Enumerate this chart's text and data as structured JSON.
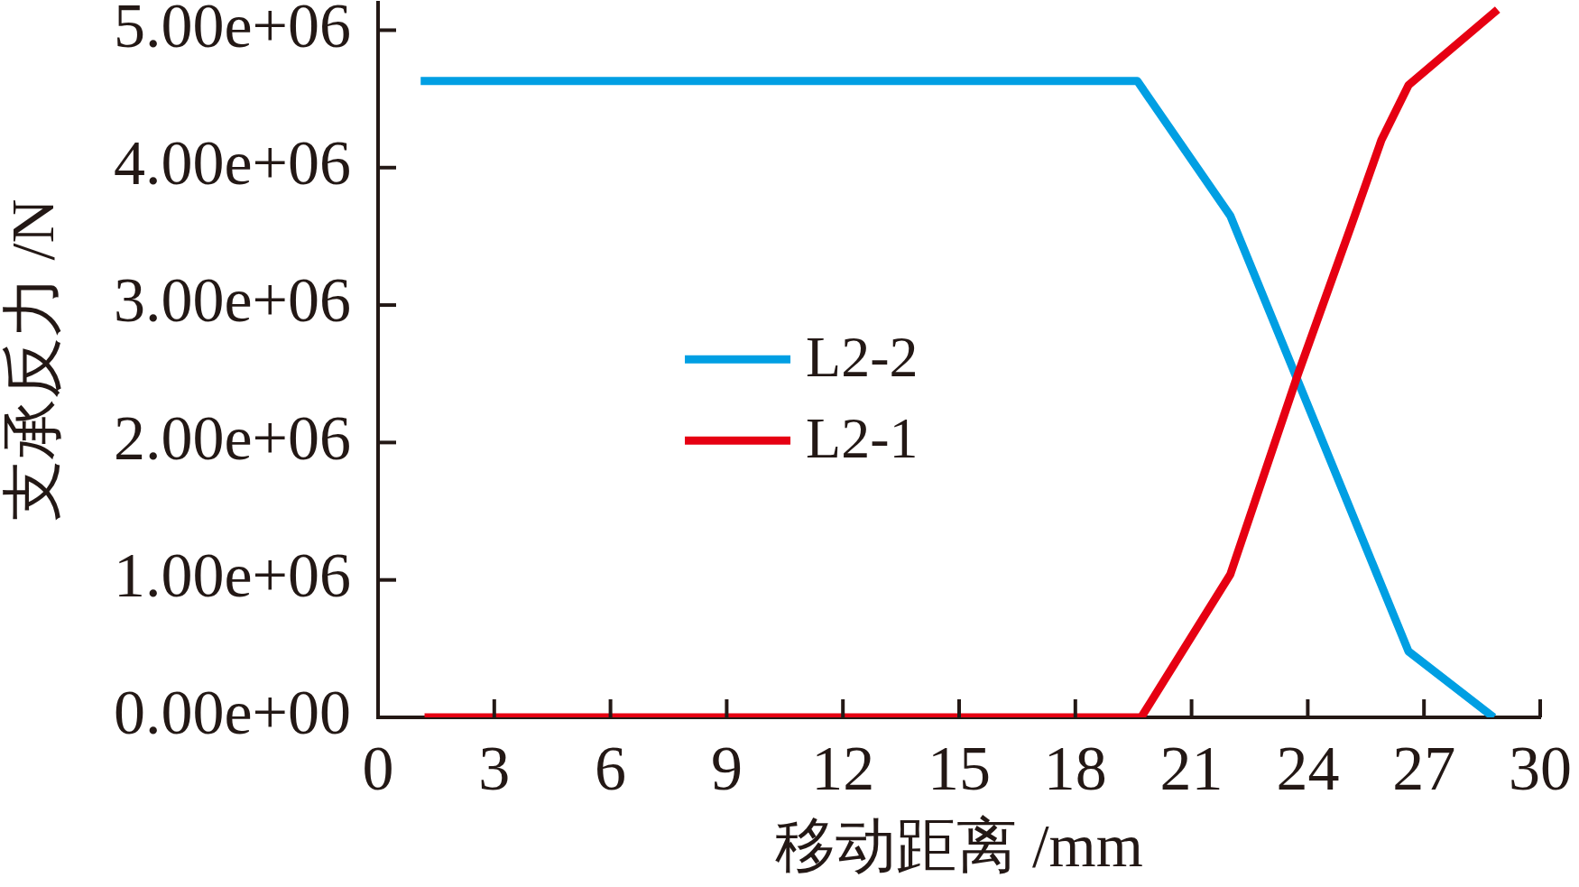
{
  "chart_data": {
    "type": "line",
    "xlabel": "移动距离 /mm",
    "ylabel": "支承反力 /N",
    "xlim": [
      0,
      30
    ],
    "xticks": [
      0,
      3,
      6,
      9,
      12,
      15,
      18,
      21,
      24,
      27,
      30
    ],
    "ylim": [
      0,
      5200000
    ],
    "yticks": [
      {
        "value": 0,
        "label": "0.00e+00"
      },
      {
        "value": 1000000,
        "label": "1.00e+06"
      },
      {
        "value": 2000000,
        "label": "2.00e+06"
      },
      {
        "value": 3000000,
        "label": "3.00e+06"
      },
      {
        "value": 4000000,
        "label": "4.00e+06"
      },
      {
        "value": 5000000,
        "label": "5.00e+06"
      }
    ],
    "legend": "left",
    "series": [
      {
        "name": "L2-2",
        "color": "#009fe3",
        "x": [
          1.1,
          19.6,
          22.0,
          26.6,
          28.8
        ],
        "values": [
          4630000,
          4630000,
          3650000,
          480000,
          0
        ]
      },
      {
        "name": "L2-1",
        "color": "#e60012",
        "x": [
          1.2,
          19.7,
          22.0,
          23.75,
          25.1,
          25.9,
          26.6,
          28.9
        ],
        "values": [
          0,
          0,
          1040000,
          2500000,
          3560000,
          4200000,
          4600000,
          5150000
        ]
      }
    ]
  }
}
